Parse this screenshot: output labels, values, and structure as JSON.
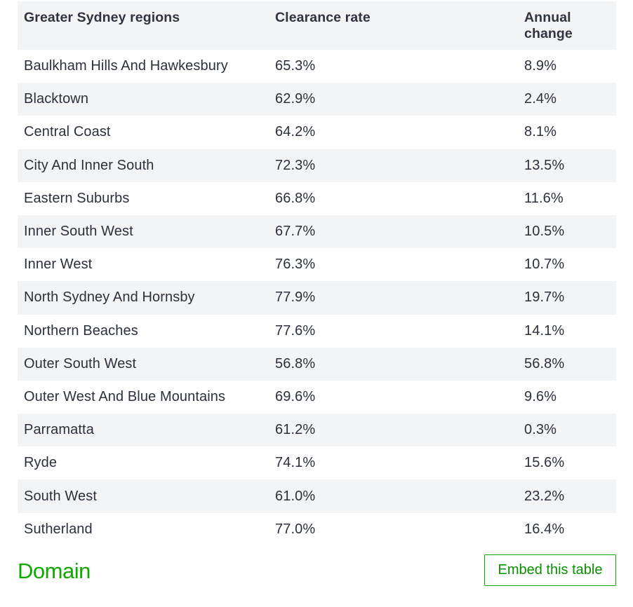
{
  "table": {
    "headers": {
      "region": "Greater Sydney regions",
      "rate": "Clearance rate",
      "change_line1": "Annual",
      "change_line2": "change"
    },
    "rows": [
      {
        "region": "Baulkham Hills And Hawkesbury",
        "rate": "65.3%",
        "change": "8.9%"
      },
      {
        "region": "Blacktown",
        "rate": "62.9%",
        "change": "2.4%"
      },
      {
        "region": "Central Coast",
        "rate": "64.2%",
        "change": "8.1%"
      },
      {
        "region": "City And Inner South",
        "rate": "72.3%",
        "change": "13.5%"
      },
      {
        "region": "Eastern Suburbs",
        "rate": "66.8%",
        "change": "11.6%"
      },
      {
        "region": "Inner South West",
        "rate": "67.7%",
        "change": "10.5%"
      },
      {
        "region": "Inner West",
        "rate": "76.3%",
        "change": "10.7%"
      },
      {
        "region": "North Sydney And Hornsby",
        "rate": "77.9%",
        "change": "19.7%"
      },
      {
        "region": "Northern Beaches",
        "rate": "77.6%",
        "change": "14.1%"
      },
      {
        "region": "Outer South West",
        "rate": "56.8%",
        "change": "56.8%"
      },
      {
        "region": "Outer West And Blue Mountains",
        "rate": "69.6%",
        "change": "9.6%"
      },
      {
        "region": "Parramatta",
        "rate": "61.2%",
        "change": "0.3%"
      },
      {
        "region": "Ryde",
        "rate": "74.1%",
        "change": "15.6%"
      },
      {
        "region": "South West",
        "rate": "61.0%",
        "change": "23.2%"
      },
      {
        "region": "Sutherland",
        "rate": "77.0%",
        "change": "16.4%"
      }
    ]
  },
  "footer": {
    "logo_text": "Domain",
    "embed_label": "Embed this table"
  },
  "colors": {
    "brand_green": "#0ea800",
    "alt_row": "#f3f4f6",
    "text": "#2b313b"
  }
}
